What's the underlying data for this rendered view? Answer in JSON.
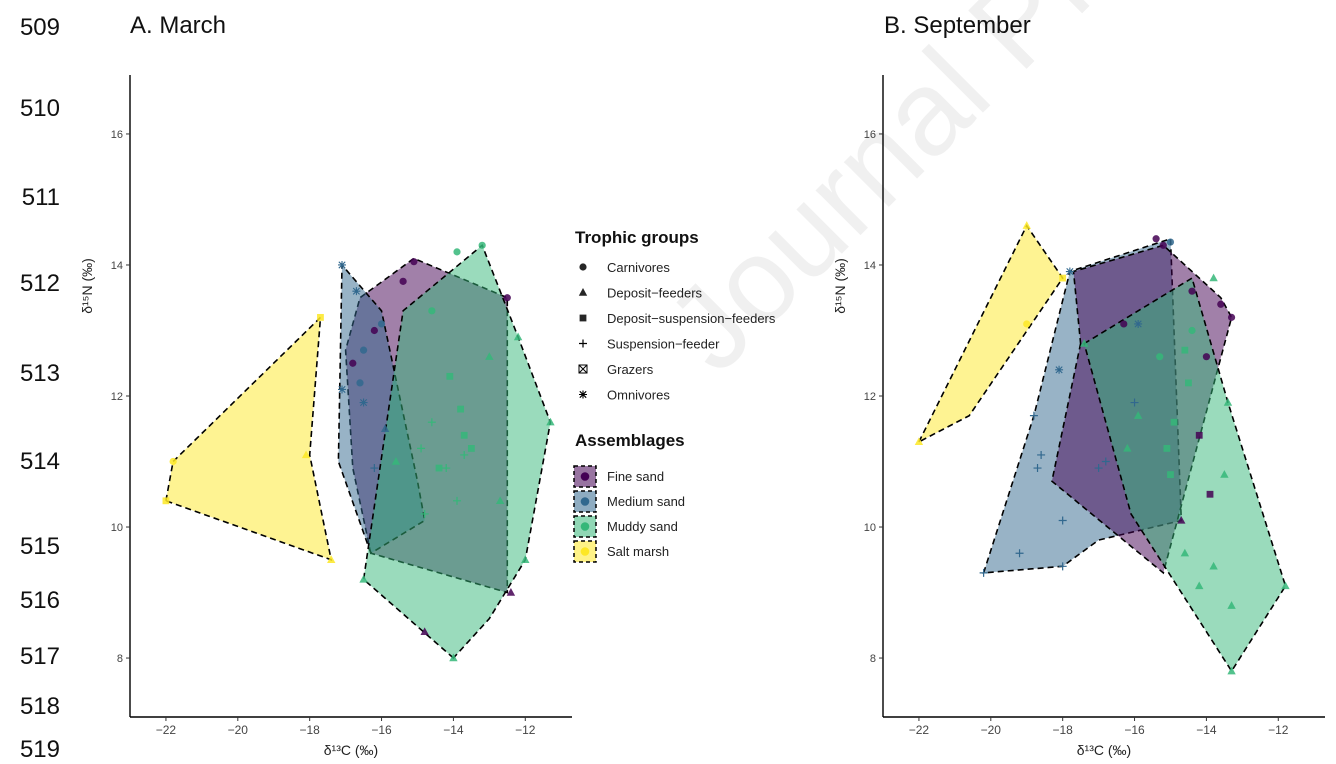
{
  "line_numbers": [
    "509",
    "510",
    "511",
    "512",
    "513",
    "514",
    "515",
    "516",
    "517",
    "518",
    "519"
  ],
  "watermark": "Journal Pre-proof",
  "legend": {
    "trophic_title": "Trophic groups",
    "trophic_items": [
      {
        "label": "Carnivores",
        "symbol": "circle"
      },
      {
        "label": "Deposit−feeders",
        "symbol": "triangle"
      },
      {
        "label": "Deposit−suspension−feeders",
        "symbol": "square"
      },
      {
        "label": "Suspension−feeder",
        "symbol": "plus"
      },
      {
        "label": "Grazers",
        "symbol": "boxed-x"
      },
      {
        "label": "Omnivores",
        "symbol": "asterisk"
      }
    ],
    "assemblage_title": "Assemblages",
    "assemblage_items": [
      {
        "label": "Fine sand",
        "color": "#440154"
      },
      {
        "label": "Medium sand",
        "color": "#31688e"
      },
      {
        "label": "Muddy sand",
        "color": "#35b779"
      },
      {
        "label": "Salt marsh",
        "color": "#fde725"
      }
    ]
  },
  "colors": {
    "Fine sand": "#440154",
    "Medium sand": "#31688e",
    "Muddy sand": "#35b779",
    "Salt marsh": "#fde725"
  },
  "chart_data": [
    {
      "type": "scatter",
      "title": "A. March",
      "xlabel": "δ¹³C (‰)",
      "ylabel": "δ¹⁵N (‰)",
      "xlim": [
        -23,
        -10.7
      ],
      "ylim": [
        7.1,
        16.9
      ],
      "xticks": [
        -22,
        -20,
        -18,
        -16,
        -14,
        -12
      ],
      "yticks": [
        8,
        10,
        12,
        14,
        16
      ],
      "hulls": [
        {
          "name": "Salt marsh",
          "points": [
            [
              -22,
              10.4
            ],
            [
              -21.8,
              11.0
            ],
            [
              -17.7,
              13.2
            ],
            [
              -18,
              11.1
            ],
            [
              -17.4,
              9.5
            ]
          ]
        },
        {
          "name": "Fine sand",
          "points": [
            [
              -16.3,
              9.6
            ],
            [
              -16.8,
              10.9
            ],
            [
              -17,
              12.7
            ],
            [
              -16.6,
              13.5
            ],
            [
              -15.1,
              14.1
            ],
            [
              -12.5,
              13.5
            ],
            [
              -12.5,
              9.0
            ]
          ]
        },
        {
          "name": "Medium sand",
          "points": [
            [
              -16.3,
              9.6
            ],
            [
              -17.2,
              11
            ],
            [
              -17.1,
              14.0
            ],
            [
              -16.0,
              13.3
            ],
            [
              -15.0,
              10.7
            ],
            [
              -14.8,
              10.1
            ]
          ]
        },
        {
          "name": "Muddy sand",
          "points": [
            [
              -14.0,
              8.0
            ],
            [
              -16.5,
              9.2
            ],
            [
              -15.4,
              13.3
            ],
            [
              -13.2,
              14.3
            ],
            [
              -12.2,
              12.9
            ],
            [
              -11.3,
              11.6
            ],
            [
              -12.0,
              9.5
            ],
            [
              -13,
              8.6
            ]
          ]
        }
      ],
      "points": [
        {
          "group": "Salt marsh",
          "symbol": "circle",
          "x": -21.8,
          "y": 11.0
        },
        {
          "group": "Salt marsh",
          "symbol": "square",
          "x": -22.0,
          "y": 10.4
        },
        {
          "group": "Salt marsh",
          "symbol": "square",
          "x": -17.7,
          "y": 13.2
        },
        {
          "group": "Salt marsh",
          "symbol": "triangle",
          "x": -18.1,
          "y": 11.1
        },
        {
          "group": "Salt marsh",
          "symbol": "triangle",
          "x": -17.4,
          "y": 9.5
        },
        {
          "group": "Medium sand",
          "symbol": "asterisk",
          "x": -17.1,
          "y": 14.0
        },
        {
          "group": "Medium sand",
          "symbol": "asterisk",
          "x": -16.7,
          "y": 13.6
        },
        {
          "group": "Medium sand",
          "symbol": "asterisk",
          "x": -16.5,
          "y": 11.9
        },
        {
          "group": "Medium sand",
          "symbol": "asterisk",
          "x": -17.1,
          "y": 12.1
        },
        {
          "group": "Medium sand",
          "symbol": "circle",
          "x": -16.5,
          "y": 12.7
        },
        {
          "group": "Medium sand",
          "symbol": "circle",
          "x": -16.0,
          "y": 13.1
        },
        {
          "group": "Medium sand",
          "symbol": "circle",
          "x": -16.6,
          "y": 12.2
        },
        {
          "group": "Medium sand",
          "symbol": "triangle",
          "x": -15.9,
          "y": 11.5
        },
        {
          "group": "Medium sand",
          "symbol": "plus",
          "x": -16.2,
          "y": 10.9
        },
        {
          "group": "Fine sand",
          "symbol": "circle",
          "x": -15.1,
          "y": 14.05
        },
        {
          "group": "Fine sand",
          "symbol": "circle",
          "x": -15.4,
          "y": 13.75
        },
        {
          "group": "Fine sand",
          "symbol": "circle",
          "x": -16.2,
          "y": 13.0
        },
        {
          "group": "Fine sand",
          "symbol": "circle",
          "x": -16.8,
          "y": 12.5
        },
        {
          "group": "Fine sand",
          "symbol": "circle",
          "x": -12.5,
          "y": 13.5
        },
        {
          "group": "Fine sand",
          "symbol": "triangle",
          "x": -14.8,
          "y": 8.4
        },
        {
          "group": "Fine sand",
          "symbol": "triangle",
          "x": -12.4,
          "y": 9.0
        },
        {
          "group": "Muddy sand",
          "symbol": "circle",
          "x": -13.2,
          "y": 14.3
        },
        {
          "group": "Muddy sand",
          "symbol": "circle",
          "x": -13.9,
          "y": 14.2
        },
        {
          "group": "Muddy sand",
          "symbol": "circle",
          "x": -14.6,
          "y": 13.3
        },
        {
          "group": "Muddy sand",
          "symbol": "triangle",
          "x": -14.0,
          "y": 8.0
        },
        {
          "group": "Muddy sand",
          "symbol": "triangle",
          "x": -16.5,
          "y": 9.2
        },
        {
          "group": "Muddy sand",
          "symbol": "triangle",
          "x": -11.3,
          "y": 11.6
        },
        {
          "group": "Muddy sand",
          "symbol": "triangle",
          "x": -12.0,
          "y": 9.5
        },
        {
          "group": "Muddy sand",
          "symbol": "triangle",
          "x": -12.2,
          "y": 12.9
        },
        {
          "group": "Muddy sand",
          "symbol": "triangle",
          "x": -13.0,
          "y": 12.6
        },
        {
          "group": "Muddy sand",
          "symbol": "triangle",
          "x": -12.7,
          "y": 10.4
        },
        {
          "group": "Muddy sand",
          "symbol": "triangle",
          "x": -15.6,
          "y": 11.0
        },
        {
          "group": "Muddy sand",
          "symbol": "square",
          "x": -14.1,
          "y": 12.3
        },
        {
          "group": "Muddy sand",
          "symbol": "square",
          "x": -13.7,
          "y": 11.4
        },
        {
          "group": "Muddy sand",
          "symbol": "square",
          "x": -13.5,
          "y": 11.2
        },
        {
          "group": "Muddy sand",
          "symbol": "square",
          "x": -14.4,
          "y": 10.9
        },
        {
          "group": "Muddy sand",
          "symbol": "square",
          "x": -13.8,
          "y": 11.8
        },
        {
          "group": "Muddy sand",
          "symbol": "plus",
          "x": -14.8,
          "y": 10.2
        },
        {
          "group": "Muddy sand",
          "symbol": "plus",
          "x": -13.9,
          "y": 10.4
        },
        {
          "group": "Muddy sand",
          "symbol": "plus",
          "x": -14.2,
          "y": 10.9
        },
        {
          "group": "Muddy sand",
          "symbol": "plus",
          "x": -14.6,
          "y": 11.6
        },
        {
          "group": "Muddy sand",
          "symbol": "plus",
          "x": -13.7,
          "y": 11.1
        },
        {
          "group": "Muddy sand",
          "symbol": "plus",
          "x": -14.9,
          "y": 11.2
        }
      ]
    },
    {
      "type": "scatter",
      "title": "B. September",
      "xlabel": "δ¹³C (‰)",
      "ylabel": "δ¹⁵N (‰)",
      "xlim": [
        -23,
        -10.7
      ],
      "ylim": [
        7.1,
        16.9
      ],
      "xticks": [
        -22,
        -20,
        -18,
        -16,
        -14,
        -12
      ],
      "yticks": [
        8,
        10,
        12,
        14,
        16
      ],
      "hulls": [
        {
          "name": "Salt marsh",
          "points": [
            [
              -22,
              11.3
            ],
            [
              -19.0,
              14.6
            ],
            [
              -18.0,
              13.8
            ],
            [
              -20.6,
              11.7
            ]
          ]
        },
        {
          "name": "Medium sand",
          "points": [
            [
              -20.2,
              9.3
            ],
            [
              -18.8,
              11.7
            ],
            [
              -17.8,
              13.9
            ],
            [
              -15.0,
              14.4
            ],
            [
              -14.7,
              10.1
            ],
            [
              -17.0,
              9.8
            ],
            [
              -18.0,
              9.4
            ]
          ]
        },
        {
          "name": "Fine sand",
          "points": [
            [
              -17.5,
              12.8
            ],
            [
              -18.3,
              10.7
            ],
            [
              -15.2,
              9.3
            ],
            [
              -13.3,
              13.2
            ],
            [
              -13.6,
              13.5
            ],
            [
              -15.2,
              14.3
            ],
            [
              -17.7,
              13.9
            ]
          ]
        },
        {
          "name": "Muddy sand",
          "points": [
            [
              -17.4,
              12.8
            ],
            [
              -14.4,
              13.8
            ],
            [
              -13.4,
              11.9
            ],
            [
              -11.8,
              9.1
            ],
            [
              -13.3,
              7.8
            ],
            [
              -16.1,
              10.2
            ]
          ]
        }
      ],
      "points": [
        {
          "group": "Salt marsh",
          "symbol": "triangle",
          "x": -19.0,
          "y": 14.6
        },
        {
          "group": "Salt marsh",
          "symbol": "triangle",
          "x": -22.0,
          "y": 11.3
        },
        {
          "group": "Salt marsh",
          "symbol": "circle",
          "x": -19.0,
          "y": 13.1
        },
        {
          "group": "Salt marsh",
          "symbol": "square",
          "x": -18.0,
          "y": 13.8
        },
        {
          "group": "Medium sand",
          "symbol": "asterisk",
          "x": -17.8,
          "y": 13.9
        },
        {
          "group": "Medium sand",
          "symbol": "asterisk",
          "x": -18.1,
          "y": 12.4
        },
        {
          "group": "Medium sand",
          "symbol": "asterisk",
          "x": -15.9,
          "y": 13.1
        },
        {
          "group": "Medium sand",
          "symbol": "plus",
          "x": -20.2,
          "y": 9.3
        },
        {
          "group": "Medium sand",
          "symbol": "plus",
          "x": -19.2,
          "y": 9.6
        },
        {
          "group": "Medium sand",
          "symbol": "plus",
          "x": -18.0,
          "y": 10.1
        },
        {
          "group": "Medium sand",
          "symbol": "plus",
          "x": -18.0,
          "y": 9.4
        },
        {
          "group": "Medium sand",
          "symbol": "plus",
          "x": -18.6,
          "y": 11.1
        },
        {
          "group": "Medium sand",
          "symbol": "plus",
          "x": -18.7,
          "y": 10.9
        },
        {
          "group": "Medium sand",
          "symbol": "plus",
          "x": -18.8,
          "y": 11.7
        },
        {
          "group": "Medium sand",
          "symbol": "plus",
          "x": -17.0,
          "y": 10.9
        },
        {
          "group": "Medium sand",
          "symbol": "plus",
          "x": -16.8,
          "y": 11.0
        },
        {
          "group": "Medium sand",
          "symbol": "plus",
          "x": -16.0,
          "y": 11.9
        },
        {
          "group": "Medium sand",
          "symbol": "circle",
          "x": -15.0,
          "y": 14.35
        },
        {
          "group": "Fine sand",
          "symbol": "circle",
          "x": -15.4,
          "y": 14.4
        },
        {
          "group": "Fine sand",
          "symbol": "circle",
          "x": -15.2,
          "y": 14.3
        },
        {
          "group": "Fine sand",
          "symbol": "circle",
          "x": -14.4,
          "y": 13.6
        },
        {
          "group": "Fine sand",
          "symbol": "circle",
          "x": -13.6,
          "y": 13.4
        },
        {
          "group": "Fine sand",
          "symbol": "circle",
          "x": -13.3,
          "y": 13.2
        },
        {
          "group": "Fine sand",
          "symbol": "circle",
          "x": -14.0,
          "y": 12.6
        },
        {
          "group": "Fine sand",
          "symbol": "circle",
          "x": -16.3,
          "y": 13.1
        },
        {
          "group": "Fine sand",
          "symbol": "triangle",
          "x": -14.7,
          "y": 10.1
        },
        {
          "group": "Fine sand",
          "symbol": "square",
          "x": -14.2,
          "y": 11.4
        },
        {
          "group": "Fine sand",
          "symbol": "square",
          "x": -13.9,
          "y": 10.5
        },
        {
          "group": "Muddy sand",
          "symbol": "triangle",
          "x": -13.3,
          "y": 7.8
        },
        {
          "group": "Muddy sand",
          "symbol": "triangle",
          "x": -11.8,
          "y": 9.1
        },
        {
          "group": "Muddy sand",
          "symbol": "triangle",
          "x": -13.3,
          "y": 8.8
        },
        {
          "group": "Muddy sand",
          "symbol": "triangle",
          "x": -14.2,
          "y": 9.1
        },
        {
          "group": "Muddy sand",
          "symbol": "triangle",
          "x": -13.8,
          "y": 9.4
        },
        {
          "group": "Muddy sand",
          "symbol": "triangle",
          "x": -14.6,
          "y": 9.6
        },
        {
          "group": "Muddy sand",
          "symbol": "triangle",
          "x": -13.5,
          "y": 10.8
        },
        {
          "group": "Muddy sand",
          "symbol": "triangle",
          "x": -13.4,
          "y": 11.9
        },
        {
          "group": "Muddy sand",
          "symbol": "triangle",
          "x": -13.8,
          "y": 13.8
        },
        {
          "group": "Muddy sand",
          "symbol": "circle",
          "x": -14.4,
          "y": 13.0
        },
        {
          "group": "Muddy sand",
          "symbol": "circle",
          "x": -15.3,
          "y": 12.6
        },
        {
          "group": "Muddy sand",
          "symbol": "square",
          "x": -14.5,
          "y": 12.2
        },
        {
          "group": "Muddy sand",
          "symbol": "square",
          "x": -14.9,
          "y": 11.6
        },
        {
          "group": "Muddy sand",
          "symbol": "square",
          "x": -14.6,
          "y": 12.7
        },
        {
          "group": "Muddy sand",
          "symbol": "square",
          "x": -15.1,
          "y": 11.2
        },
        {
          "group": "Muddy sand",
          "symbol": "square",
          "x": -15.0,
          "y": 10.8
        },
        {
          "group": "Muddy sand",
          "symbol": "triangle",
          "x": -16.2,
          "y": 11.2
        },
        {
          "group": "Muddy sand",
          "symbol": "triangle",
          "x": -15.9,
          "y": 11.7
        },
        {
          "group": "Muddy sand",
          "symbol": "triangle",
          "x": -17.4,
          "y": 12.8
        }
      ]
    }
  ]
}
